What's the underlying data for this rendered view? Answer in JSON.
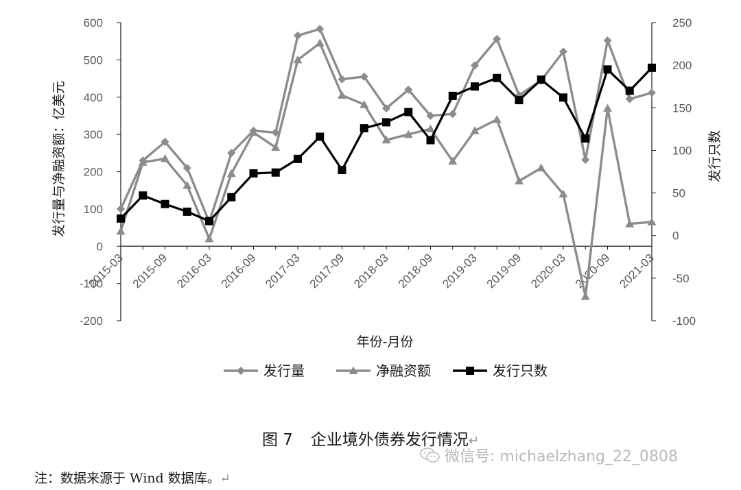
{
  "chart_data": {
    "type": "line",
    "x": [
      "2015-03",
      "2015-06",
      "2015-09",
      "2015-12",
      "2016-03",
      "2016-06",
      "2016-09",
      "2016-12",
      "2017-03",
      "2017-06",
      "2017-09",
      "2017-12",
      "2018-03",
      "2018-06",
      "2018-09",
      "2018-12",
      "2019-03",
      "2019-06",
      "2019-09",
      "2019-12",
      "2020-03",
      "2020-06",
      "2020-09",
      "2020-12",
      "2021-03"
    ],
    "x_tick_labels": [
      "2015-03",
      "2015-09",
      "2016-03",
      "2016-09",
      "2017-03",
      "2017-09",
      "2018-03",
      "2018-09",
      "2019-03",
      "2019-09",
      "2020-03",
      "2020-09",
      "2021-03"
    ],
    "xlabel": "年份-月份",
    "ylabel_left": "发行量与净融资额：亿美元",
    "ylabel_right": "发行只数",
    "ylim_left": [
      -200,
      600
    ],
    "ylim_right": [
      -100,
      250
    ],
    "yticks_left": [
      -200,
      -100,
      0,
      100,
      200,
      300,
      400,
      500,
      600
    ],
    "yticks_right": [
      -100,
      -50,
      0,
      50,
      100,
      150,
      200,
      250
    ],
    "legend_position": "bottom",
    "grid": false,
    "series": [
      {
        "name": "发行量",
        "axis": "left",
        "marker": "diamond",
        "color": "#8c8c8c",
        "values": [
          100,
          230,
          280,
          210,
          65,
          250,
          310,
          305,
          565,
          583,
          448,
          455,
          370,
          420,
          350,
          355,
          485,
          556,
          405,
          445,
          522,
          232,
          552,
          395,
          412
        ]
      },
      {
        "name": "净融资额",
        "axis": "left",
        "marker": "triangle",
        "color": "#8c8c8c",
        "values": [
          40,
          225,
          235,
          163,
          20,
          195,
          305,
          265,
          500,
          545,
          405,
          380,
          285,
          300,
          315,
          228,
          310,
          340,
          175,
          210,
          140,
          -135,
          370,
          60,
          65
        ]
      },
      {
        "name": "发行只数",
        "axis": "right",
        "marker": "square",
        "color": "#000000",
        "values": [
          20,
          47,
          37,
          28,
          17,
          45,
          73,
          74,
          90,
          116,
          77,
          126,
          133,
          145,
          112,
          164,
          175,
          185,
          159,
          183,
          162,
          114,
          195,
          170,
          197
        ]
      }
    ]
  },
  "caption": {
    "figure_no": "图 7",
    "title": "企业境外债券发行情况",
    "mark": "↵"
  },
  "note": {
    "text": "注：数据来源于 Wind 数据库。",
    "mark": "↵"
  },
  "watermark": {
    "text": "微信号: michaelzhang_22_0808",
    "icon": "wechat-icon"
  }
}
